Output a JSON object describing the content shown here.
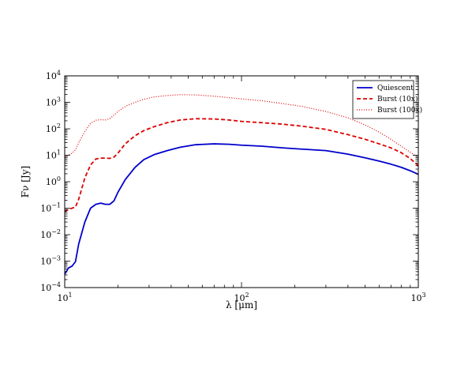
{
  "chart_data": {
    "type": "line",
    "xlabel": "λ [μm]",
    "ylabel": "Fν [Jy]",
    "xscale": "log",
    "yscale": "log",
    "xlim": [
      10,
      1000
    ],
    "ylim": [
      0.0001,
      10000
    ],
    "grid": false,
    "legend_position": "top-right",
    "x_ticks": [
      {
        "base": "10",
        "exp": "1",
        "value": 10
      },
      {
        "base": "10",
        "exp": "2",
        "value": 100
      },
      {
        "base": "10",
        "exp": "3",
        "value": 1000
      }
    ],
    "y_ticks": [
      {
        "base": "10",
        "exp": "−4",
        "value": 0.0001
      },
      {
        "base": "10",
        "exp": "−3",
        "value": 0.001
      },
      {
        "base": "10",
        "exp": "−2",
        "value": 0.01
      },
      {
        "base": "10",
        "exp": "−1",
        "value": 0.1
      },
      {
        "base": "10",
        "exp": "0",
        "value": 1
      },
      {
        "base": "10",
        "exp": "1",
        "value": 10
      },
      {
        "base": "10",
        "exp": "2",
        "value": 100
      },
      {
        "base": "10",
        "exp": "3",
        "value": 1000
      },
      {
        "base": "10",
        "exp": "4",
        "value": 10000
      }
    ],
    "series": [
      {
        "name": "Quiescent",
        "color": "#0000cc",
        "style": "solid",
        "x": [
          10,
          10.5,
          11,
          11.5,
          12,
          13,
          14,
          15,
          16,
          17,
          18,
          19,
          20,
          22,
          25,
          28,
          32,
          38,
          45,
          55,
          70,
          85,
          100,
          130,
          170,
          220,
          300,
          400,
          500,
          600,
          700,
          800,
          900,
          1000
        ],
        "y": [
          0.00032,
          0.00055,
          0.00065,
          0.00095,
          0.0045,
          0.03,
          0.1,
          0.14,
          0.155,
          0.14,
          0.14,
          0.19,
          0.4,
          1.2,
          3.5,
          6.8,
          10.5,
          15,
          20,
          25,
          27,
          26,
          24,
          22,
          19,
          17,
          15,
          11,
          8,
          6,
          4.6,
          3.5,
          2.6,
          1.9
        ]
      },
      {
        "name": "Burst (10x)",
        "color": "#dd0000",
        "style": "dashed",
        "x": [
          10,
          10.5,
          11,
          11.5,
          12,
          13,
          14,
          15,
          16,
          17,
          18,
          19,
          20,
          22,
          25,
          28,
          32,
          38,
          45,
          55,
          70,
          85,
          100,
          130,
          170,
          220,
          300,
          400,
          500,
          600,
          700,
          800,
          900,
          1000
        ],
        "y": [
          0.075,
          0.09,
          0.1,
          0.11,
          0.22,
          1.4,
          4.3,
          7.2,
          7.8,
          7.8,
          7.6,
          8.5,
          12,
          27,
          55,
          85,
          120,
          170,
          215,
          240,
          235,
          215,
          190,
          170,
          150,
          125,
          95,
          60,
          40,
          27,
          19,
          12.5,
          7.5,
          4
        ]
      },
      {
        "name": "Burst (100x)",
        "color": "#dd0000",
        "style": "dotted",
        "x": [
          10,
          10.5,
          11,
          11.5,
          12,
          13,
          14,
          15,
          16,
          17,
          18,
          19,
          20,
          22,
          25,
          28,
          32,
          38,
          45,
          55,
          70,
          85,
          100,
          130,
          170,
          220,
          300,
          400,
          500,
          600,
          700,
          800,
          900,
          1000
        ],
        "y": [
          8.5,
          10,
          12,
          16,
          30,
          80,
          160,
          210,
          220,
          215,
          240,
          330,
          450,
          700,
          1000,
          1300,
          1600,
          1800,
          1950,
          1900,
          1700,
          1500,
          1350,
          1150,
          900,
          700,
          450,
          260,
          140,
          75,
          40,
          22,
          13,
          8
        ]
      }
    ]
  }
}
